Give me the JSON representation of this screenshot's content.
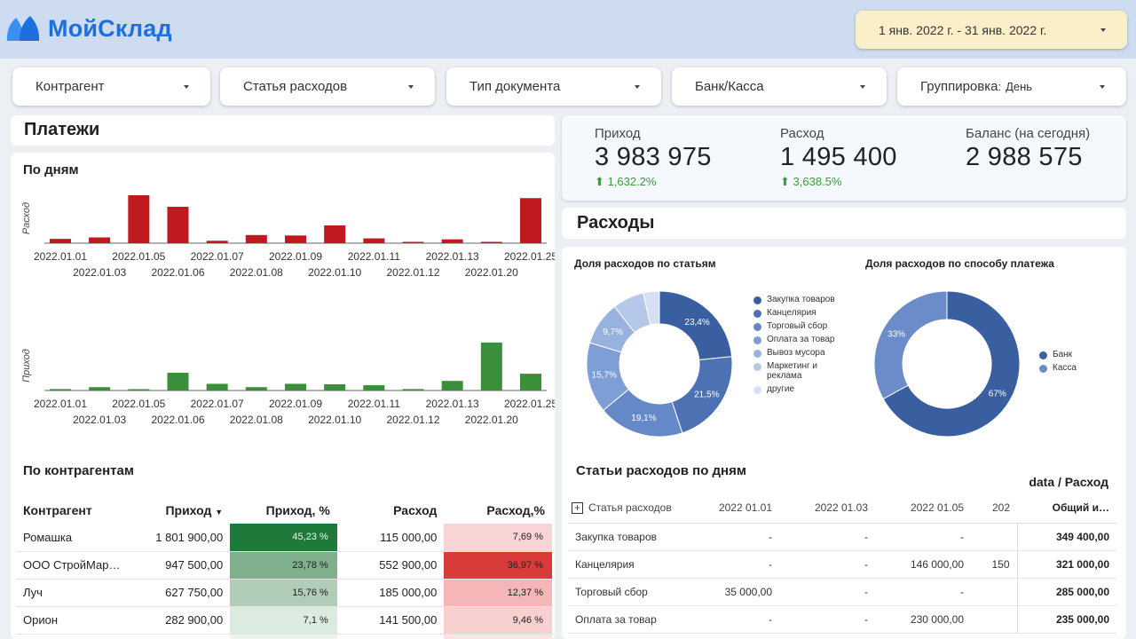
{
  "app": {
    "name": "МойСклад"
  },
  "date_range": "1 янв. 2022 г. - 31 янв. 2022 г.",
  "filters": [
    {
      "label": "Контрагент"
    },
    {
      "label": "Статья расходов"
    },
    {
      "label": "Тип документа"
    },
    {
      "label": "Банк/Касса"
    },
    {
      "label": "Группировка",
      "value": "День"
    }
  ],
  "payments_title": "Платежи",
  "by_days_title": "По дням",
  "kpis": [
    {
      "label": "Приход",
      "value": "3 983 975",
      "delta": "1,632.2%"
    },
    {
      "label": "Расход",
      "value": "1 495 400",
      "delta": "3,638.5%"
    },
    {
      "label": "Баланс (на сегодня)",
      "value": "2 988 575"
    }
  ],
  "expenses_title": "Расходы",
  "chart_data": [
    {
      "type": "bar",
      "ylabel": "Расход",
      "color": "#c0191f",
      "categories": [
        "2022.01.01",
        "2022.01.03",
        "2022.01.05",
        "2022.01.06",
        "2022.01.07",
        "2022.01.08",
        "2022.01.09",
        "2022.01.10",
        "2022.01.11",
        "2022.01.12",
        "2022.01.13",
        "2022.01.20",
        "2022.01.25"
      ],
      "values": [
        9,
        12,
        100,
        76,
        5,
        17,
        16,
        37,
        10,
        1,
        8,
        1,
        94
      ]
    },
    {
      "type": "bar",
      "ylabel": "Приход",
      "color": "#3b8f3b",
      "categories": [
        "2022.01.01",
        "2022.01.03",
        "2022.01.05",
        "2022.01.06",
        "2022.01.07",
        "2022.01.08",
        "2022.01.09",
        "2022.01.10",
        "2022.01.11",
        "2022.01.12",
        "2022.01.13",
        "2022.01.20",
        "2022.01.25"
      ],
      "values": [
        3,
        7,
        1,
        37,
        14,
        7,
        14,
        13,
        11,
        3,
        20,
        100,
        35
      ]
    },
    {
      "type": "pie",
      "title": "Доля расходов по статьям",
      "labels": [
        "Закупка товаров",
        "Канцелярия",
        "Торговый сбор",
        "Оплата за товар",
        "Вывоз мусора",
        "Маркетинг и реклама",
        "другие"
      ],
      "values": [
        23.4,
        21.5,
        19.1,
        15.7,
        9.7,
        7.0,
        3.6
      ],
      "display": [
        "23,4%",
        "21,5%",
        "19,1%",
        "15,7%",
        "9,7%",
        "",
        ""
      ],
      "colors": [
        "#3a5fa0",
        "#4d72b3",
        "#6589c8",
        "#7e9ed8",
        "#98b2e0",
        "#b6c8ea",
        "#d6e0f4"
      ]
    },
    {
      "type": "pie",
      "title": "Доля расходов по способу платежа",
      "labels": [
        "Банк",
        "Касса"
      ],
      "values": [
        67,
        33
      ],
      "display": [
        "67%",
        "33%"
      ],
      "colors": [
        "#3a5fa0",
        "#6b8cc8"
      ]
    }
  ],
  "contractors": {
    "title": "По контрагентам",
    "headers": [
      "Контрагент",
      "Приход",
      "Приход, %",
      "Расход",
      "Расход,%"
    ],
    "rows": [
      {
        "name": "Ромашка",
        "income": "1 801 900,00",
        "income_pct": "45,23 %",
        "expense": "115 000,00",
        "expense_pct": "7,69 %"
      },
      {
        "name": "ООО СтройМар…",
        "income": "947 500,00",
        "income_pct": "23,78 %",
        "expense": "552 900,00",
        "expense_pct": "36,97 %"
      },
      {
        "name": "Луч",
        "income": "627 750,00",
        "income_pct": "15,76 %",
        "expense": "185 000,00",
        "expense_pct": "12,37 %"
      },
      {
        "name": "Орион",
        "income": "282 900,00",
        "income_pct": "7,1 %",
        "expense": "141 500,00",
        "expense_pct": "9,46 %"
      }
    ]
  },
  "exp_by_days": {
    "title": "Статьи расходов по дням",
    "subtitle": "data / Расход",
    "headers": [
      "Статья расходов",
      "2022 01.01",
      "2022 01.03",
      "2022 01.05",
      "202",
      "Общий и…"
    ],
    "rows": [
      {
        "name": "Закупка товаров",
        "c1": "-",
        "c2": "-",
        "c3": "-",
        "c4": "",
        "total": "349 400,00"
      },
      {
        "name": "Канцелярия",
        "c1": "-",
        "c2": "-",
        "c3": "146 000,00",
        "c4": "150",
        "total": "321 000,00"
      },
      {
        "name": "Торговый сбор",
        "c1": "35 000,00",
        "c2": "-",
        "c3": "-",
        "c4": "",
        "total": "285 000,00"
      },
      {
        "name": "Оплата за товар",
        "c1": "-",
        "c2": "-",
        "c3": "230 000,00",
        "c4": "",
        "total": "235 000,00"
      }
    ]
  }
}
